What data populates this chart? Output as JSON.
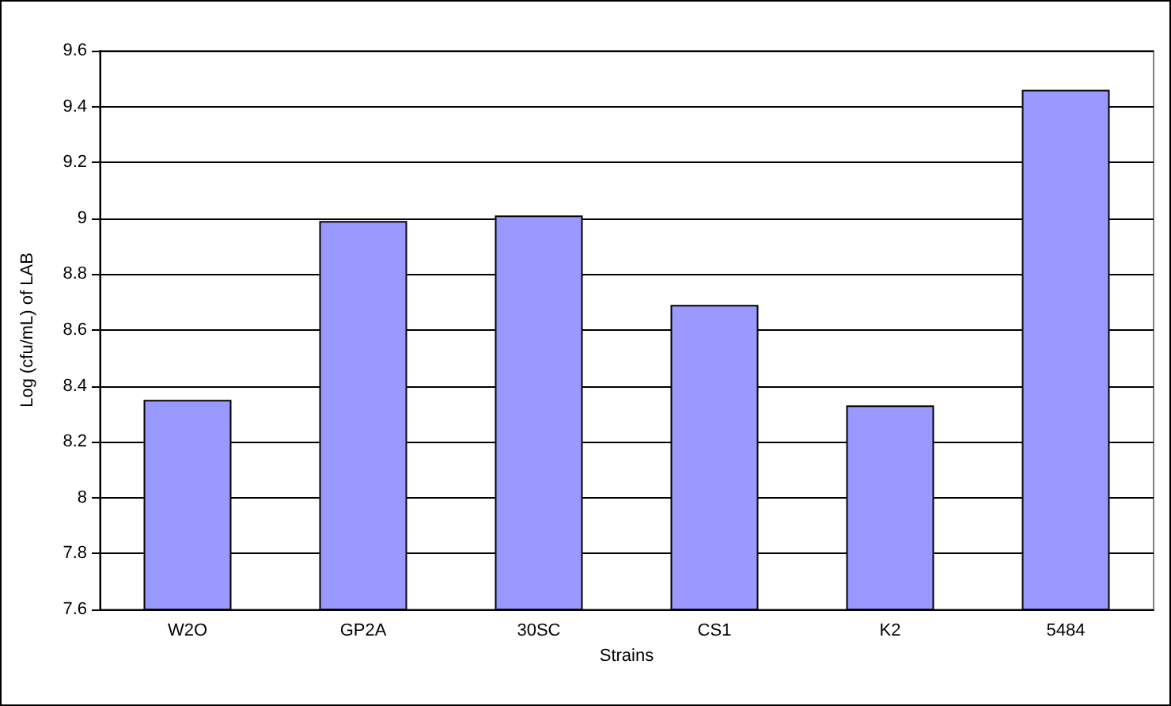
{
  "chart_data": {
    "type": "bar",
    "xlabel": "Strains",
    "ylabel": "Log (cfu/mL) of LAB",
    "categories": [
      "W2O",
      "GP2A",
      "30SC",
      "CS1",
      "K2",
      "5484"
    ],
    "values": [
      8.35,
      8.99,
      9.01,
      8.69,
      8.33,
      9.46
    ],
    "color": "#9999ff",
    "ylim": [
      7.6,
      9.6
    ],
    "yticks": [
      7.6,
      7.8,
      8,
      8.2,
      8.4,
      8.6,
      8.8,
      9,
      9.2,
      9.4,
      9.6
    ],
    "grid": "y"
  }
}
